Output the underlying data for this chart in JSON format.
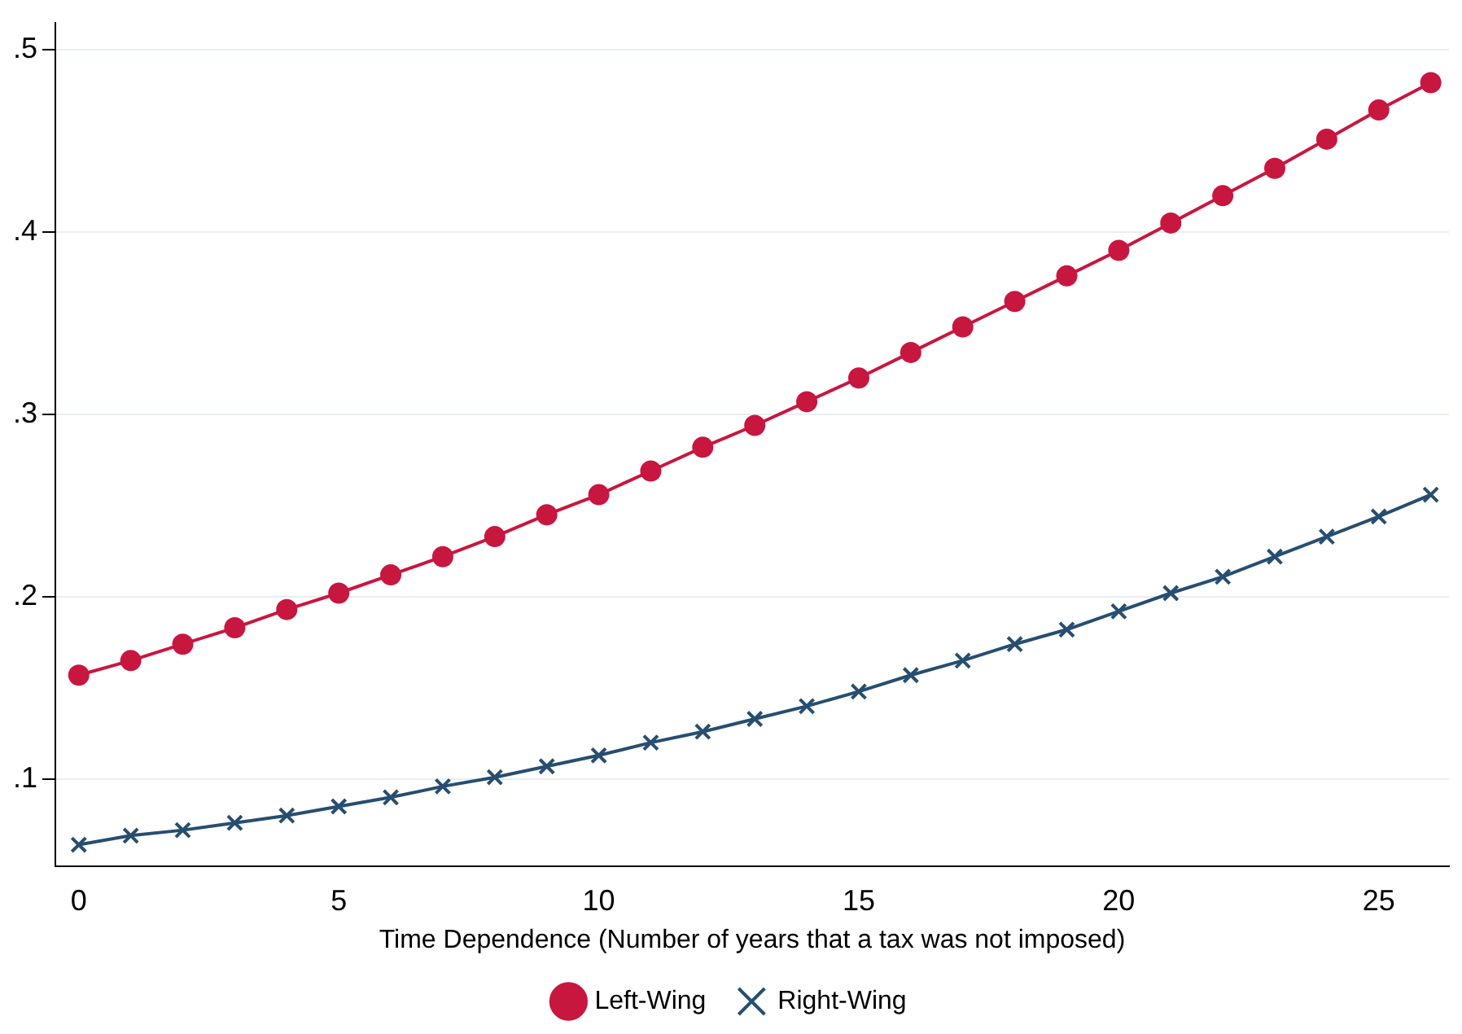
{
  "chart_data": {
    "type": "line",
    "xlabel": "Time Dependence (Number of years that a tax was not imposed)",
    "x": [
      0,
      1,
      2,
      3,
      4,
      5,
      6,
      7,
      8,
      9,
      10,
      11,
      12,
      13,
      14,
      15,
      16,
      17,
      18,
      19,
      20,
      21,
      22,
      23,
      24,
      25,
      26
    ],
    "series": [
      {
        "name": "Left-Wing",
        "color": "#c8173f",
        "marker": "circle",
        "values": [
          0.157,
          0.165,
          0.174,
          0.183,
          0.193,
          0.202,
          0.212,
          0.222,
          0.233,
          0.245,
          0.256,
          0.269,
          0.282,
          0.294,
          0.307,
          0.32,
          0.334,
          0.348,
          0.362,
          0.376,
          0.39,
          0.405,
          0.42,
          0.435,
          0.451,
          0.467,
          0.482
        ]
      },
      {
        "name": "Right-Wing",
        "color": "#264e70",
        "marker": "cross",
        "values": [
          0.064,
          0.069,
          0.072,
          0.076,
          0.08,
          0.085,
          0.09,
          0.096,
          0.101,
          0.107,
          0.113,
          0.12,
          0.126,
          0.133,
          0.14,
          0.148,
          0.157,
          0.165,
          0.174,
          0.182,
          0.192,
          0.202,
          0.211,
          0.222,
          0.233,
          0.244,
          0.256
        ]
      }
    ],
    "xlim": [
      -0.45,
      26.35
    ],
    "xticks": [
      0,
      5,
      10,
      15,
      20,
      25
    ],
    "ylim": [
      0.052,
      0.515
    ],
    "yticks": [
      {
        "value": 0.1,
        "label": ".1"
      },
      {
        "value": 0.2,
        "label": ".2"
      },
      {
        "value": 0.3,
        "label": ".3"
      },
      {
        "value": 0.4,
        "label": ".4"
      },
      {
        "value": 0.5,
        "label": ".5"
      }
    ],
    "grid": "y",
    "legend": "bottom",
    "line_style": "solid"
  }
}
